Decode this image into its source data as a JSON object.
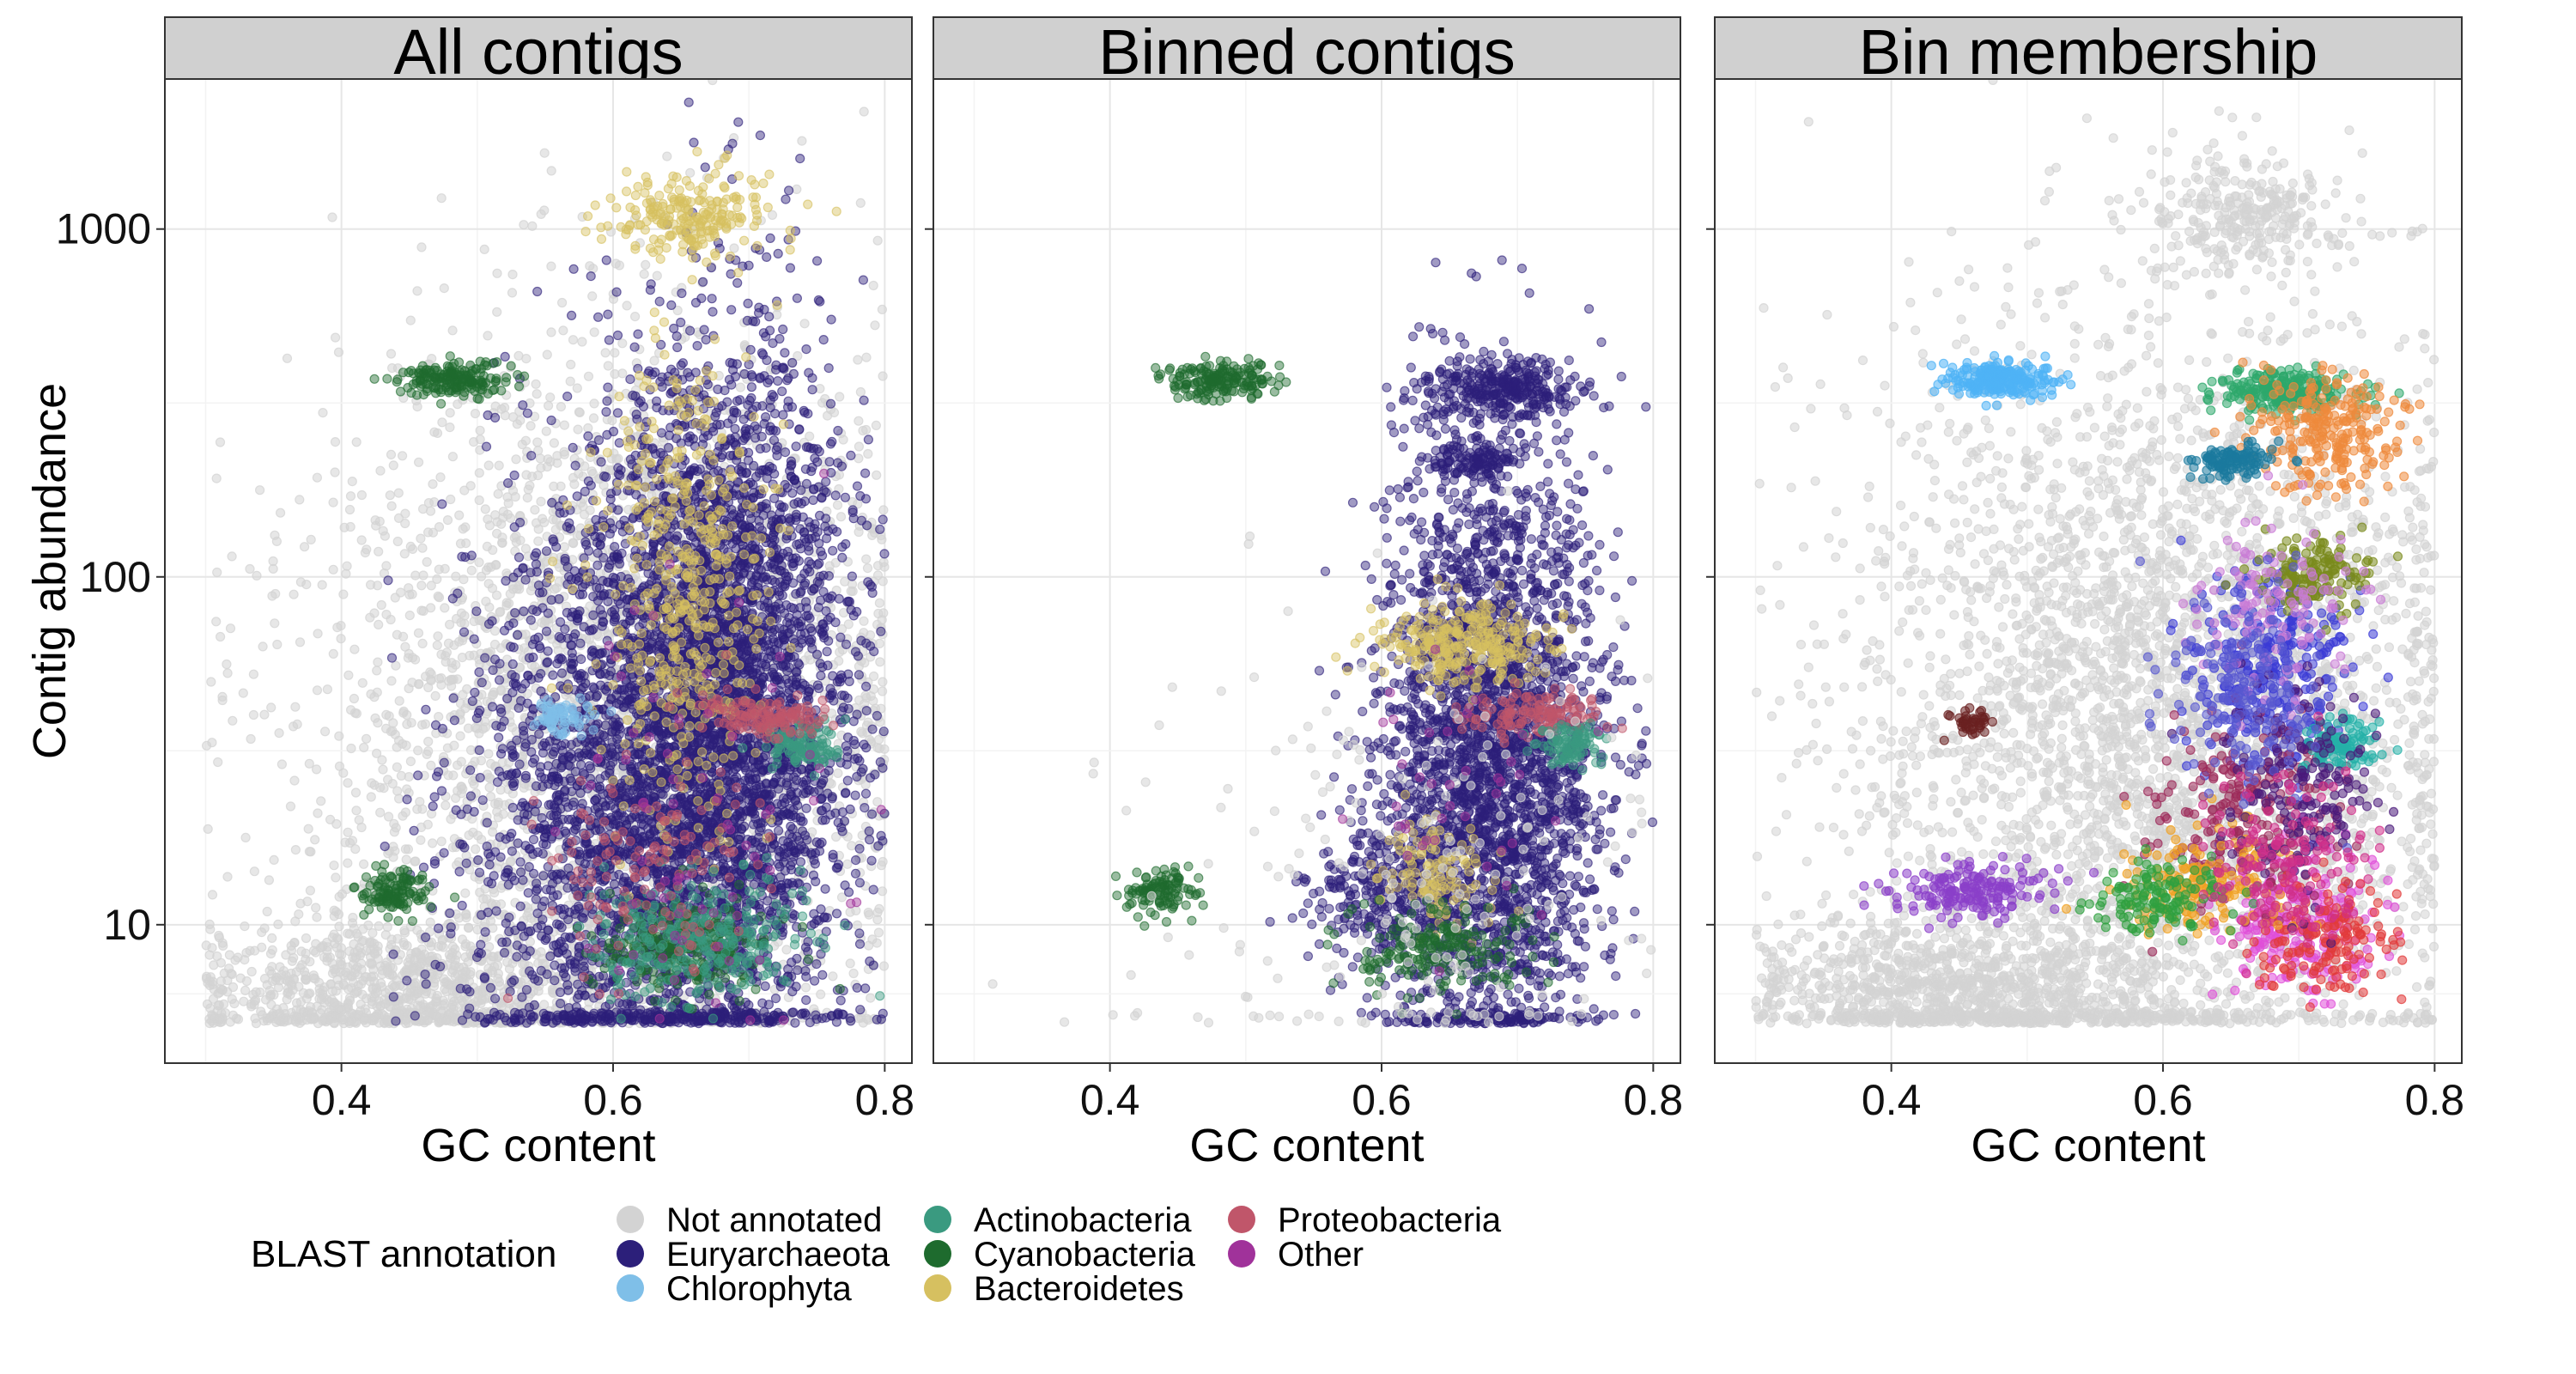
{
  "figure": {
    "y_axis_title": "Contig abundance",
    "x_axis_title": "GC content"
  },
  "colors": {
    "strip_background": "#d0d0d0",
    "panel_background": "#ffffff",
    "grid_major": "#e6e6e6",
    "grid_minor": "#f3f3f3"
  },
  "chart_data": [
    {
      "type": "scatter",
      "title": "All contigs",
      "xlabel": "GC content",
      "ylabel": "Contig abundance",
      "y_scale": "log10",
      "xlim": [
        0.27,
        0.82
      ],
      "ylim": [
        4,
        2700
      ],
      "x_ticks": [
        0.4,
        0.6,
        0.8
      ],
      "y_ticks": [
        10,
        100,
        1000
      ],
      "grid": true,
      "color_mode": "blast",
      "clusters": [
        {
          "label": "Not annotated",
          "x": 0.6,
          "y": 40,
          "sx": 0.11,
          "sy": 0.55,
          "n": 3200
        },
        {
          "label": "Not annotated",
          "x": 0.45,
          "y": 6.5,
          "sx": 0.08,
          "sy": 0.1,
          "n": 1000
        },
        {
          "label": "Euryarchaeota",
          "x": 0.68,
          "y": 45,
          "sx": 0.045,
          "sy": 0.5,
          "n": 3800
        },
        {
          "label": "Euryarchaeota",
          "x": 0.6,
          "y": 20,
          "sx": 0.06,
          "sy": 0.45,
          "n": 1800
        },
        {
          "label": "Bacteroidetes",
          "x": 0.66,
          "y": 1100,
          "sx": 0.03,
          "sy": 0.06,
          "n": 220
        },
        {
          "label": "Bacteroidetes",
          "x": 0.65,
          "y": 90,
          "sx": 0.03,
          "sy": 0.35,
          "n": 500
        },
        {
          "label": "Cyanobacteria",
          "x": 0.48,
          "y": 370,
          "sx": 0.02,
          "sy": 0.025,
          "n": 180
        },
        {
          "label": "Cyanobacteria",
          "x": 0.44,
          "y": 12.5,
          "sx": 0.013,
          "sy": 0.03,
          "n": 120
        },
        {
          "label": "Cyanobacteria",
          "x": 0.65,
          "y": 8.5,
          "sx": 0.03,
          "sy": 0.07,
          "n": 250
        },
        {
          "label": "Actinobacteria",
          "x": 0.74,
          "y": 33,
          "sx": 0.014,
          "sy": 0.03,
          "n": 120
        },
        {
          "label": "Actinobacteria",
          "x": 0.66,
          "y": 9,
          "sx": 0.04,
          "sy": 0.1,
          "n": 280
        },
        {
          "label": "Chlorophyta",
          "x": 0.56,
          "y": 39,
          "sx": 0.012,
          "sy": 0.025,
          "n": 70
        },
        {
          "label": "Proteobacteria",
          "x": 0.71,
          "y": 40,
          "sx": 0.025,
          "sy": 0.03,
          "n": 140
        },
        {
          "label": "Proteobacteria",
          "x": 0.62,
          "y": 14,
          "sx": 0.04,
          "sy": 0.15,
          "n": 130
        },
        {
          "label": "Other",
          "x": 0.66,
          "y": 20,
          "sx": 0.05,
          "sy": 0.3,
          "n": 70
        }
      ]
    },
    {
      "type": "scatter",
      "title": "Binned contigs",
      "xlabel": "GC content",
      "ylabel": "",
      "y_scale": "log10",
      "xlim": [
        0.27,
        0.82
      ],
      "ylim": [
        4,
        2700
      ],
      "x_ticks": [
        0.4,
        0.6,
        0.8
      ],
      "y_ticks": [
        10,
        100,
        1000
      ],
      "grid": true,
      "color_mode": "blast",
      "clusters": [
        {
          "label": "Euryarchaeota",
          "x": 0.68,
          "y": 30,
          "sx": 0.04,
          "sy": 0.45,
          "n": 3000
        },
        {
          "label": "Euryarchaeota",
          "x": 0.69,
          "y": 350,
          "sx": 0.025,
          "sy": 0.04,
          "n": 300
        },
        {
          "label": "Euryarchaeota",
          "x": 0.67,
          "y": 215,
          "sx": 0.015,
          "sy": 0.03,
          "n": 120
        },
        {
          "label": "Euryarchaeota",
          "x": 0.6,
          "y": 12,
          "sx": 0.03,
          "sy": 0.1,
          "n": 250
        },
        {
          "label": "Bacteroidetes",
          "x": 0.66,
          "y": 65,
          "sx": 0.03,
          "sy": 0.06,
          "n": 300
        },
        {
          "label": "Bacteroidetes",
          "x": 0.64,
          "y": 14,
          "sx": 0.02,
          "sy": 0.08,
          "n": 130
        },
        {
          "label": "Cyanobacteria",
          "x": 0.48,
          "y": 370,
          "sx": 0.02,
          "sy": 0.025,
          "n": 180
        },
        {
          "label": "Cyanobacteria",
          "x": 0.44,
          "y": 12.5,
          "sx": 0.013,
          "sy": 0.03,
          "n": 110
        },
        {
          "label": "Cyanobacteria",
          "x": 0.64,
          "y": 8.5,
          "sx": 0.03,
          "sy": 0.06,
          "n": 200
        },
        {
          "label": "Proteobacteria",
          "x": 0.71,
          "y": 40,
          "sx": 0.025,
          "sy": 0.03,
          "n": 140
        },
        {
          "label": "Actinobacteria",
          "x": 0.74,
          "y": 33,
          "sx": 0.013,
          "sy": 0.03,
          "n": 100
        },
        {
          "label": "Not annotated",
          "x": 0.62,
          "y": 15,
          "sx": 0.1,
          "sy": 0.4,
          "n": 200
        },
        {
          "label": "Other",
          "x": 0.66,
          "y": 25,
          "sx": 0.04,
          "sy": 0.2,
          "n": 40
        }
      ]
    },
    {
      "type": "scatter",
      "title": "Bin membership",
      "xlabel": "GC content",
      "ylabel": "",
      "y_scale": "log10",
      "xlim": [
        0.27,
        0.82
      ],
      "ylim": [
        4,
        2700
      ],
      "x_ticks": [
        0.4,
        0.6,
        0.8
      ],
      "y_ticks": [
        10,
        100,
        1000
      ],
      "grid": true,
      "color_mode": "bin",
      "bin_colors": [
        "#4fb3f6",
        "#2ea86b",
        "#ee8a3c",
        "#1b7a9e",
        "#3b3bd6",
        "#e04fd8",
        "#9c2a5a",
        "#7a8a1c",
        "#8b3fc9",
        "#e23b3b",
        "#25b0a8",
        "#f0a020",
        "#4a1a7a",
        "#c97bd6",
        "#2fa03f",
        "#5a5ad0",
        "#d0308a",
        "#6a2020"
      ],
      "clusters": [
        {
          "bin": -1,
          "x": 0.6,
          "y": 40,
          "sx": 0.11,
          "sy": 0.55,
          "n": 3600
        },
        {
          "bin": -1,
          "x": 0.45,
          "y": 6.5,
          "sx": 0.08,
          "sy": 0.1,
          "n": 1000
        },
        {
          "bin": -1,
          "x": 0.66,
          "y": 1100,
          "sx": 0.04,
          "sy": 0.08,
          "n": 300
        },
        {
          "bin": 0,
          "x": 0.48,
          "y": 370,
          "sx": 0.02,
          "sy": 0.025,
          "n": 220
        },
        {
          "bin": 1,
          "x": 0.69,
          "y": 340,
          "sx": 0.025,
          "sy": 0.03,
          "n": 260
        },
        {
          "bin": 2,
          "x": 0.72,
          "y": 260,
          "sx": 0.025,
          "sy": 0.08,
          "n": 250
        },
        {
          "bin": 3,
          "x": 0.65,
          "y": 215,
          "sx": 0.016,
          "sy": 0.025,
          "n": 120
        },
        {
          "bin": 4,
          "x": 0.68,
          "y": 55,
          "sx": 0.03,
          "sy": 0.15,
          "n": 300
        },
        {
          "bin": 5,
          "x": 0.7,
          "y": 10,
          "sx": 0.03,
          "sy": 0.1,
          "n": 220
        },
        {
          "bin": 6,
          "x": 0.66,
          "y": 22,
          "sx": 0.035,
          "sy": 0.15,
          "n": 220
        },
        {
          "bin": 7,
          "x": 0.71,
          "y": 100,
          "sx": 0.02,
          "sy": 0.05,
          "n": 150
        },
        {
          "bin": 8,
          "x": 0.46,
          "y": 12.5,
          "sx": 0.03,
          "sy": 0.04,
          "n": 180
        },
        {
          "bin": 9,
          "x": 0.72,
          "y": 9,
          "sx": 0.025,
          "sy": 0.08,
          "n": 160
        },
        {
          "bin": 10,
          "x": 0.73,
          "y": 33,
          "sx": 0.015,
          "sy": 0.04,
          "n": 110
        },
        {
          "bin": 11,
          "x": 0.63,
          "y": 13,
          "sx": 0.03,
          "sy": 0.08,
          "n": 160
        },
        {
          "bin": 12,
          "x": 0.7,
          "y": 25,
          "sx": 0.03,
          "sy": 0.15,
          "n": 180
        },
        {
          "bin": 13,
          "x": 0.68,
          "y": 80,
          "sx": 0.03,
          "sy": 0.12,
          "n": 130
        },
        {
          "bin": 14,
          "x": 0.6,
          "y": 12,
          "sx": 0.025,
          "sy": 0.05,
          "n": 140
        },
        {
          "bin": 15,
          "x": 0.66,
          "y": 45,
          "sx": 0.03,
          "sy": 0.15,
          "n": 180
        },
        {
          "bin": 16,
          "x": 0.69,
          "y": 15,
          "sx": 0.03,
          "sy": 0.12,
          "n": 160
        },
        {
          "bin": 17,
          "x": 0.46,
          "y": 38,
          "sx": 0.008,
          "sy": 0.02,
          "n": 40
        }
      ]
    }
  ],
  "legend": {
    "title": "BLAST annotation",
    "columns": [
      [
        {
          "label": "Not annotated",
          "color": "#d3d3d3"
        },
        {
          "label": "Euryarchaeota",
          "color": "#2c1f7a"
        },
        {
          "label": "Chlorophyta",
          "color": "#7fbfe8"
        }
      ],
      [
        {
          "label": "Actinobacteria",
          "color": "#3a9a80"
        },
        {
          "label": "Cyanobacteria",
          "color": "#1e6b2e"
        },
        {
          "label": "Bacteroidetes",
          "color": "#d6c060"
        }
      ],
      [
        {
          "label": "Proteobacteria",
          "color": "#c0566a"
        },
        {
          "label": "Other",
          "color": "#a0329a"
        }
      ]
    ]
  }
}
